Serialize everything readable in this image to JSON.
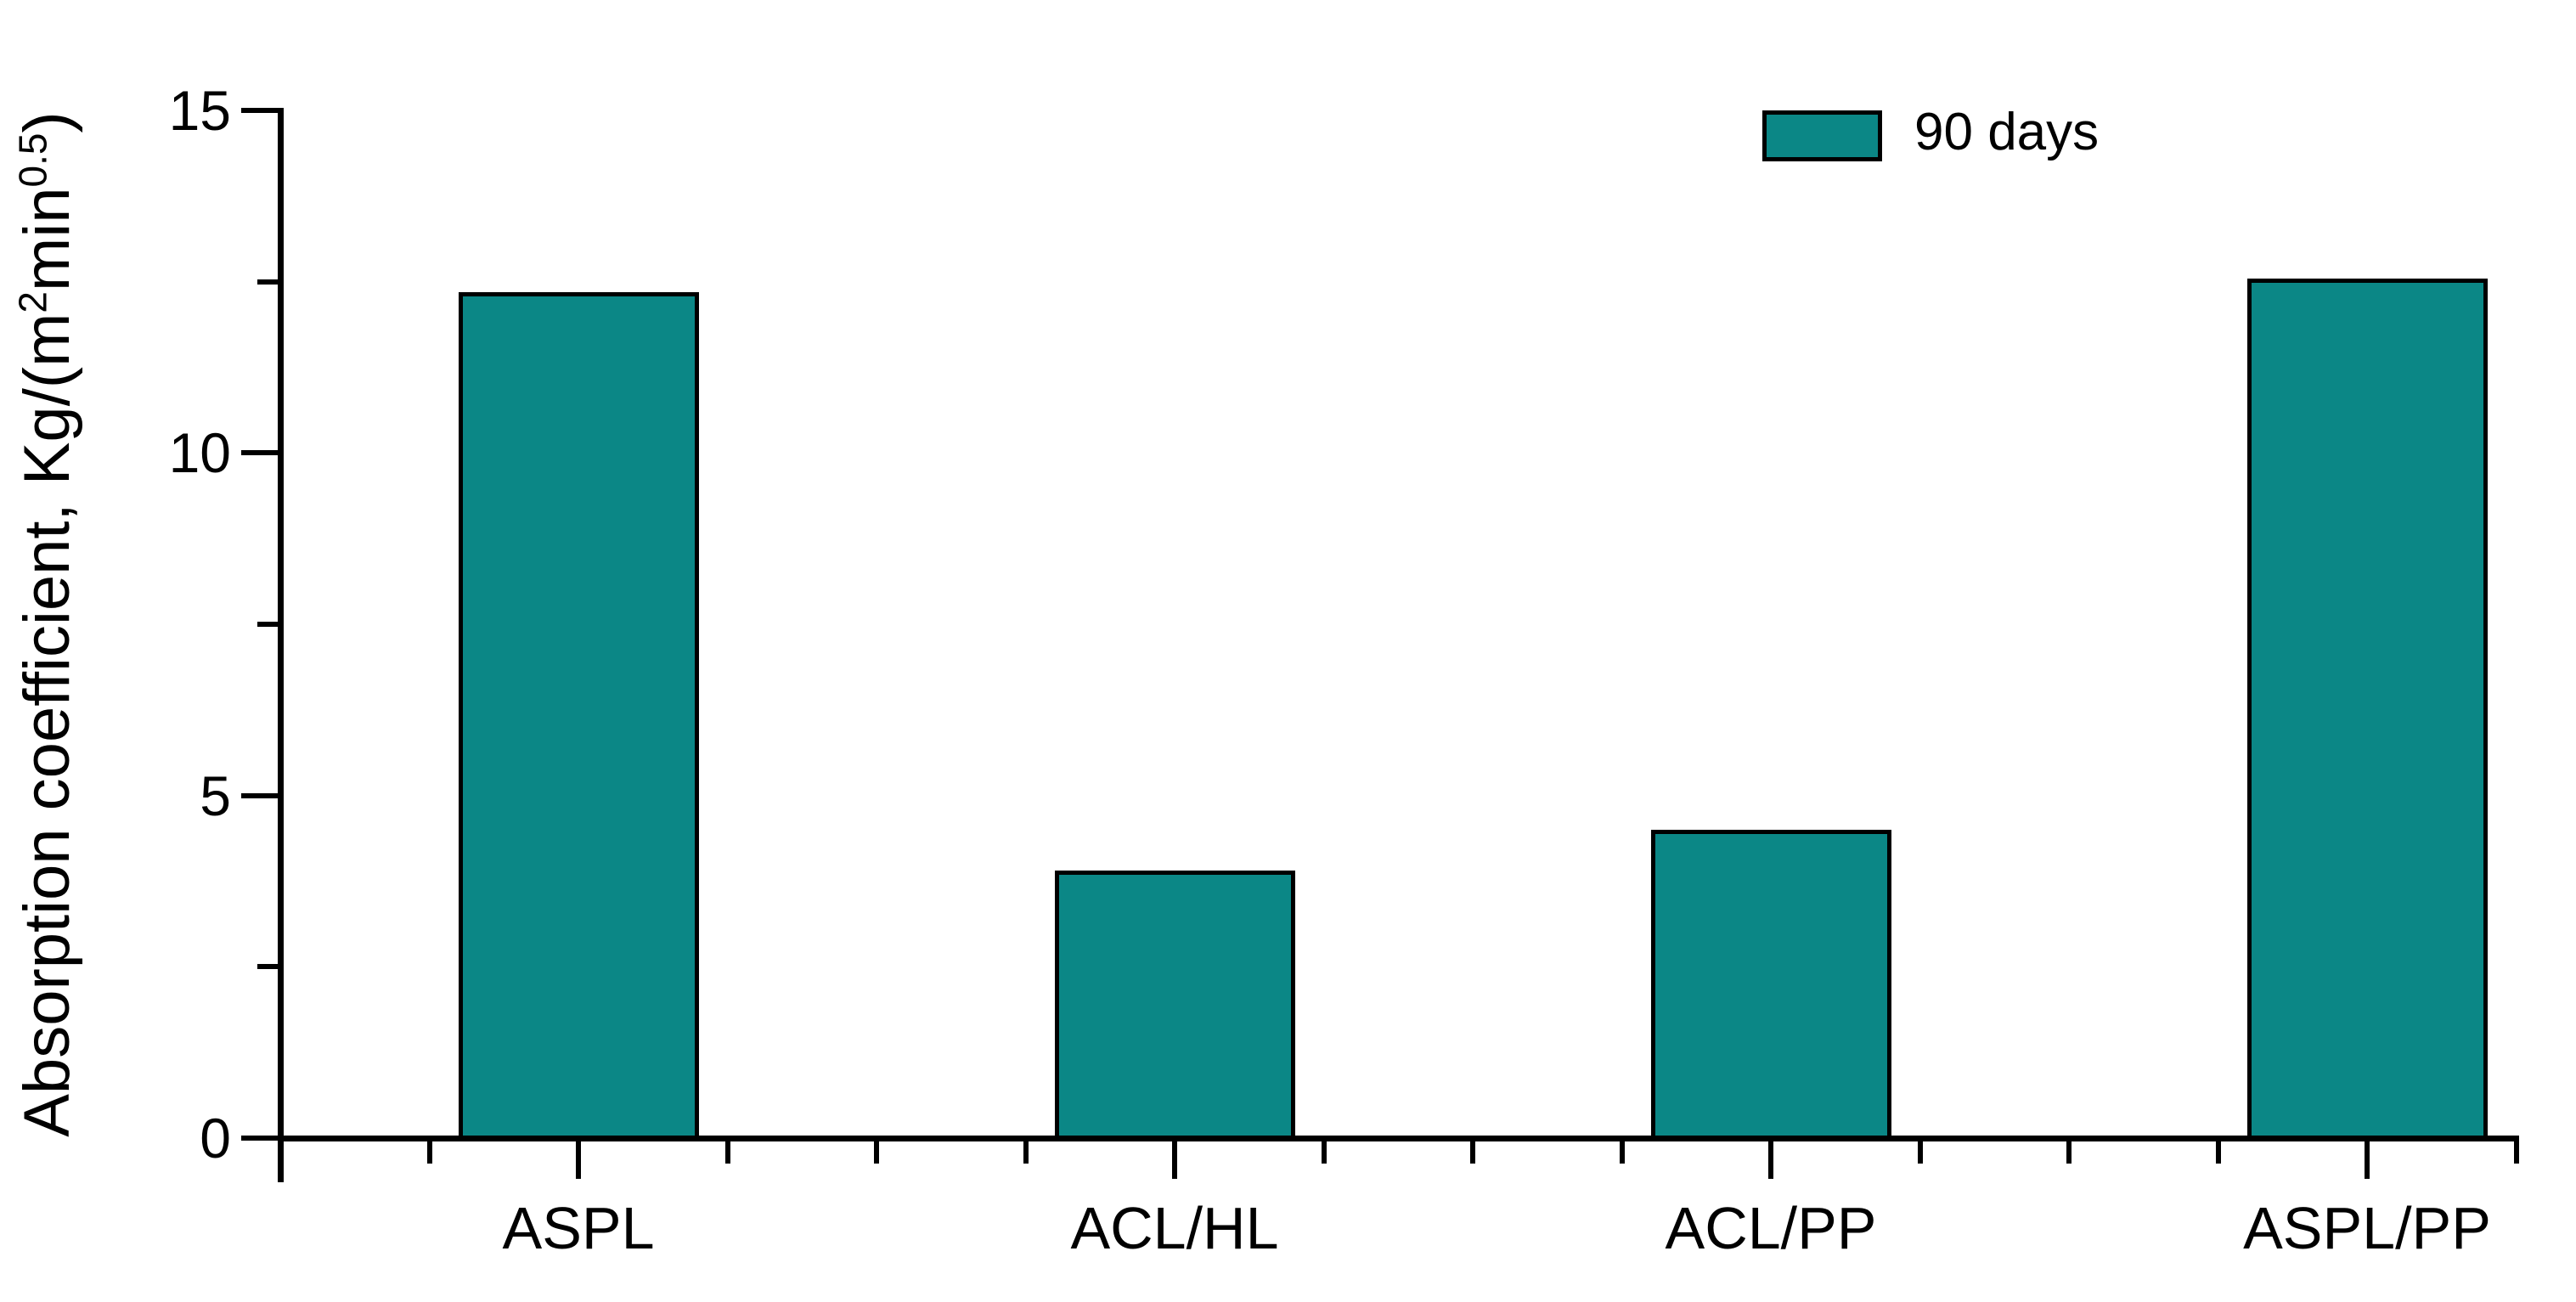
{
  "chart_data": {
    "type": "bar",
    "categories": [
      "ASPL",
      "ACL/HL",
      "ACL/PP",
      "ASPL/PP"
    ],
    "series": [
      {
        "name": "90 days",
        "values": [
          12.35,
          3.9,
          4.5,
          12.55
        ]
      }
    ],
    "title": "",
    "xlabel": "",
    "ylabel": "Absorption coefficient, Kg/(m²min⁰·⁵)",
    "ylabel_parts": {
      "pre": "Absorption coefficient, Kg/(m",
      "sup1": "2",
      "mid": "min",
      "sup2": "0.5",
      "post": ")"
    },
    "ylim": [
      0,
      15
    ],
    "yticks": [
      0,
      5,
      10,
      15
    ],
    "ytick_labels": [
      "0",
      "5",
      "10",
      "15"
    ],
    "minor_tick_interval": 2.5,
    "grid": false,
    "legend": {
      "position": "top-right",
      "entries": [
        {
          "label": "90 days",
          "color": "#0b8786"
        }
      ]
    },
    "bar_color": "#0b8786",
    "bar_border_color": "#000000",
    "axis_color": "#000000"
  }
}
